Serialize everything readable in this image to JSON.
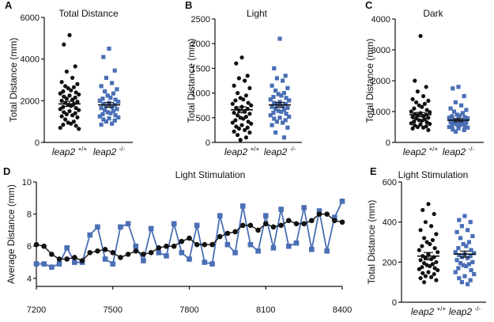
{
  "chart_data": [
    {
      "type": "scatter",
      "panel": "A",
      "title": "Total Distance",
      "ylabel": "Total Distance (mm)",
      "ylim": [
        0,
        6000
      ],
      "yticks": [
        "0",
        "2000",
        "4000",
        "6000"
      ],
      "groups": [
        {
          "name": "leap2",
          "sup": "+/+",
          "mean": 1850,
          "sem": 120,
          "color": "#111111",
          "marker": "circle",
          "values": [
            5150,
            4700,
            3650,
            3400,
            3100,
            2900,
            2800,
            2700,
            2650,
            2600,
            2500,
            2450,
            2400,
            2350,
            2300,
            2250,
            2200,
            2150,
            2100,
            2050,
            2000,
            1950,
            1900,
            1850,
            1800,
            1750,
            1700,
            1650,
            1600,
            1550,
            1500,
            1450,
            1400,
            1350,
            1300,
            1250,
            1200,
            1100,
            1000,
            950,
            900,
            850,
            800,
            700,
            650
          ]
        },
        {
          "name": "leap2",
          "sup": "-/-",
          "mean": 1800,
          "sem": 110,
          "color": "#4a6fb5",
          "marker": "square",
          "values": [
            4500,
            4100,
            3450,
            3100,
            2850,
            2700,
            2550,
            2450,
            2350,
            2250,
            2150,
            2100,
            2050,
            2000,
            1950,
            1900,
            1850,
            1800,
            1750,
            1700,
            1650,
            1600,
            1550,
            1500,
            1450,
            1400,
            1350,
            1300,
            1250,
            1200,
            1150,
            1100,
            1050,
            1000,
            900,
            850
          ]
        }
      ]
    },
    {
      "type": "scatter",
      "panel": "B",
      "title": "Light",
      "ylabel": "Total Distance (mm)",
      "ylim": [
        0,
        2500
      ],
      "yticks": [
        "0",
        "500",
        "1000",
        "1500",
        "2000",
        "2500"
      ],
      "groups": [
        {
          "name": "leap2",
          "sup": "+/+",
          "mean": 660,
          "sem": 60,
          "color": "#111111",
          "marker": "circle",
          "values": [
            1720,
            1600,
            1350,
            1300,
            1250,
            1150,
            1100,
            1000,
            950,
            900,
            870,
            850,
            800,
            780,
            750,
            720,
            700,
            680,
            650,
            620,
            600,
            580,
            550,
            520,
            500,
            480,
            450,
            420,
            400,
            380,
            350,
            320,
            300,
            280,
            250,
            220,
            200,
            150,
            100,
            50
          ]
        },
        {
          "name": "leap2",
          "sup": "-/-",
          "mean": 760,
          "sem": 50,
          "color": "#4a6fb5",
          "marker": "square",
          "values": [
            2100,
            1500,
            1350,
            1300,
            1250,
            1150,
            1100,
            1050,
            1000,
            980,
            950,
            920,
            900,
            870,
            850,
            820,
            800,
            780,
            760,
            740,
            720,
            700,
            680,
            660,
            640,
            620,
            600,
            580,
            550,
            520,
            500,
            480,
            450,
            420,
            400,
            350,
            300,
            200,
            100
          ]
        }
      ]
    },
    {
      "type": "scatter",
      "panel": "C",
      "title": "Dark",
      "ylabel": "Total Distance (mm)",
      "ylim": [
        0,
        4000
      ],
      "yticks": [
        "0",
        "1000",
        "2000",
        "3000",
        "4000"
      ],
      "groups": [
        {
          "name": "leap2",
          "sup": "+/+",
          "mean": 900,
          "sem": 70,
          "color": "#111111",
          "marker": "circle",
          "values": [
            3450,
            2000,
            1800,
            1650,
            1500,
            1400,
            1350,
            1300,
            1250,
            1200,
            1150,
            1100,
            1050,
            1000,
            980,
            950,
            920,
            900,
            880,
            850,
            820,
            800,
            780,
            750,
            720,
            700,
            680,
            650,
            620,
            600,
            580,
            550,
            520,
            500,
            480,
            450,
            400
          ]
        },
        {
          "name": "leap2",
          "sup": "-/-",
          "mean": 720,
          "sem": 50,
          "color": "#4a6fb5",
          "marker": "square",
          "values": [
            1800,
            1750,
            1500,
            1300,
            1200,
            1100,
            1050,
            1000,
            950,
            900,
            870,
            850,
            820,
            800,
            780,
            760,
            740,
            720,
            700,
            680,
            660,
            640,
            620,
            600,
            580,
            560,
            540,
            520,
            500,
            480,
            450,
            420,
            400,
            350
          ]
        }
      ]
    },
    {
      "type": "line",
      "panel": "D",
      "title": "Light Stimulation",
      "ylabel": "Average Distance (mm)",
      "xlim": [
        7200,
        8400
      ],
      "ylim": [
        3.5,
        10
      ],
      "xticks": [
        "7200",
        "7500",
        "7800",
        "8100",
        "8400"
      ],
      "yticks": [
        "4",
        "6",
        "8",
        "10"
      ],
      "series": [
        {
          "marker": "square",
          "color": "#4a6fb5",
          "x": [
            7200,
            7230,
            7260,
            7290,
            7320,
            7350,
            7380,
            7410,
            7440,
            7470,
            7500,
            7530,
            7560,
            7590,
            7620,
            7650,
            7680,
            7710,
            7740,
            7770,
            7800,
            7830,
            7860,
            7890,
            7920,
            7950,
            7980,
            8010,
            8040,
            8070,
            8100,
            8130,
            8160,
            8190,
            8220,
            8250,
            8280,
            8310,
            8340,
            8370,
            8400
          ],
          "y": [
            4.9,
            4.9,
            4.7,
            4.9,
            5.9,
            5.0,
            5.0,
            6.7,
            7.2,
            5.2,
            4.9,
            7.2,
            7.4,
            6.0,
            5.1,
            7.1,
            5.6,
            5.4,
            7.4,
            5.6,
            5.2,
            7.3,
            5.0,
            4.9,
            7.9,
            6.1,
            5.6,
            8.5,
            6.1,
            5.7,
            7.9,
            5.9,
            8.3,
            6.0,
            6.2,
            8.4,
            5.8,
            8.2,
            5.7,
            7.8,
            8.8
          ]
        },
        {
          "marker": "circle",
          "color": "#111111",
          "x": [
            7200,
            7230,
            7260,
            7290,
            7320,
            7350,
            7380,
            7410,
            7440,
            7470,
            7500,
            7530,
            7560,
            7590,
            7620,
            7650,
            7680,
            7710,
            7740,
            7770,
            7800,
            7830,
            7860,
            7890,
            7920,
            7950,
            7980,
            8010,
            8040,
            8070,
            8100,
            8130,
            8160,
            8190,
            8220,
            8250,
            8280,
            8310,
            8340,
            8370,
            8400
          ],
          "y": [
            6.1,
            6.0,
            5.5,
            5.2,
            5.2,
            5.3,
            5.1,
            5.6,
            5.7,
            5.8,
            5.6,
            5.3,
            5.5,
            5.7,
            5.5,
            5.6,
            5.9,
            6.0,
            6.0,
            6.3,
            6.5,
            6.1,
            6.1,
            6.1,
            6.6,
            6.8,
            6.9,
            7.3,
            7.3,
            7.0,
            7.4,
            7.2,
            7.3,
            7.6,
            7.4,
            7.4,
            7.6,
            8.0,
            8.0,
            7.6,
            7.5
          ]
        }
      ]
    },
    {
      "type": "scatter",
      "panel": "E",
      "title": "Light Stimulation",
      "ylabel": "Total Distance (mm)",
      "ylim": [
        0,
        600
      ],
      "yticks": [
        "0",
        "200",
        "400",
        "600"
      ],
      "groups": [
        {
          "name": "leap2",
          "sup": "+/+",
          "mean": 230,
          "sem": 18,
          "color": "#111111",
          "marker": "circle",
          "values": [
            490,
            460,
            440,
            400,
            380,
            360,
            340,
            320,
            310,
            300,
            290,
            280,
            270,
            260,
            250,
            240,
            230,
            225,
            220,
            215,
            210,
            200,
            195,
            190,
            185,
            180,
            175,
            170,
            165,
            160,
            150,
            145,
            140,
            130,
            125,
            120,
            110,
            100
          ]
        },
        {
          "name": "leap2",
          "sup": "-/-",
          "mean": 240,
          "sem": 15,
          "color": "#4a6fb5",
          "marker": "square",
          "values": [
            430,
            410,
            400,
            380,
            360,
            350,
            330,
            320,
            300,
            290,
            280,
            270,
            260,
            250,
            245,
            240,
            235,
            230,
            225,
            220,
            210,
            200,
            195,
            190,
            185,
            180,
            170,
            160,
            150,
            140,
            130,
            120,
            110,
            100,
            90
          ]
        }
      ]
    }
  ]
}
